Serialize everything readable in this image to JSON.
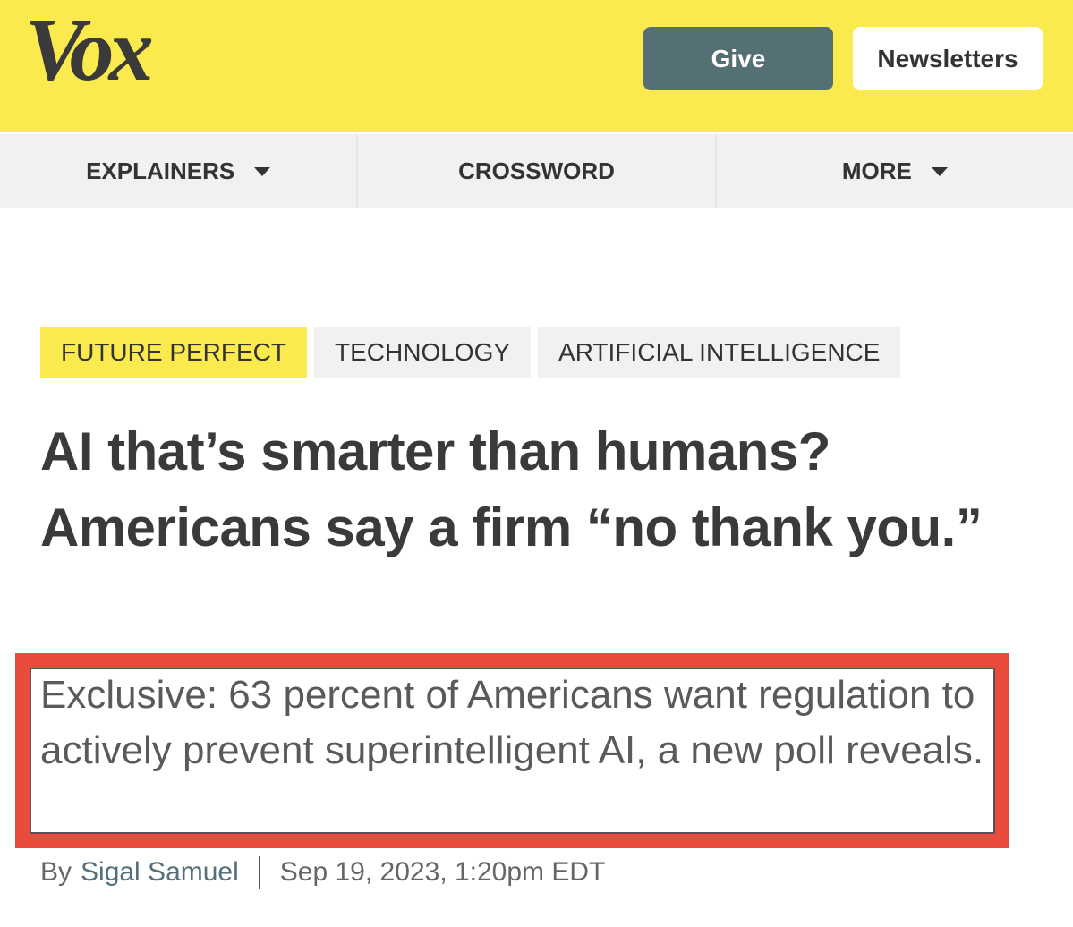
{
  "header": {
    "logo": "Vox",
    "buttons": [
      "Give",
      "Newsletters"
    ]
  },
  "nav": {
    "items": [
      "EXPLAINERS",
      "CROSSWORD",
      "MORE"
    ]
  },
  "tags": [
    "FUTURE PERFECT",
    "TECHNOLOGY",
    "ARTIFICIAL INTELLIGENCE"
  ],
  "article": {
    "headline": "AI that’s smarter than humans? Americans say a firm “no thank you.”",
    "subheadline": "Exclusive: 63 percent of Americans want regulation to actively prevent superintelligent AI, a new poll reveals.",
    "byline": {
      "prefix": "By",
      "author": "Sigal Samuel",
      "date": "Sep 19, 2023, 1:20pm EDT"
    }
  }
}
